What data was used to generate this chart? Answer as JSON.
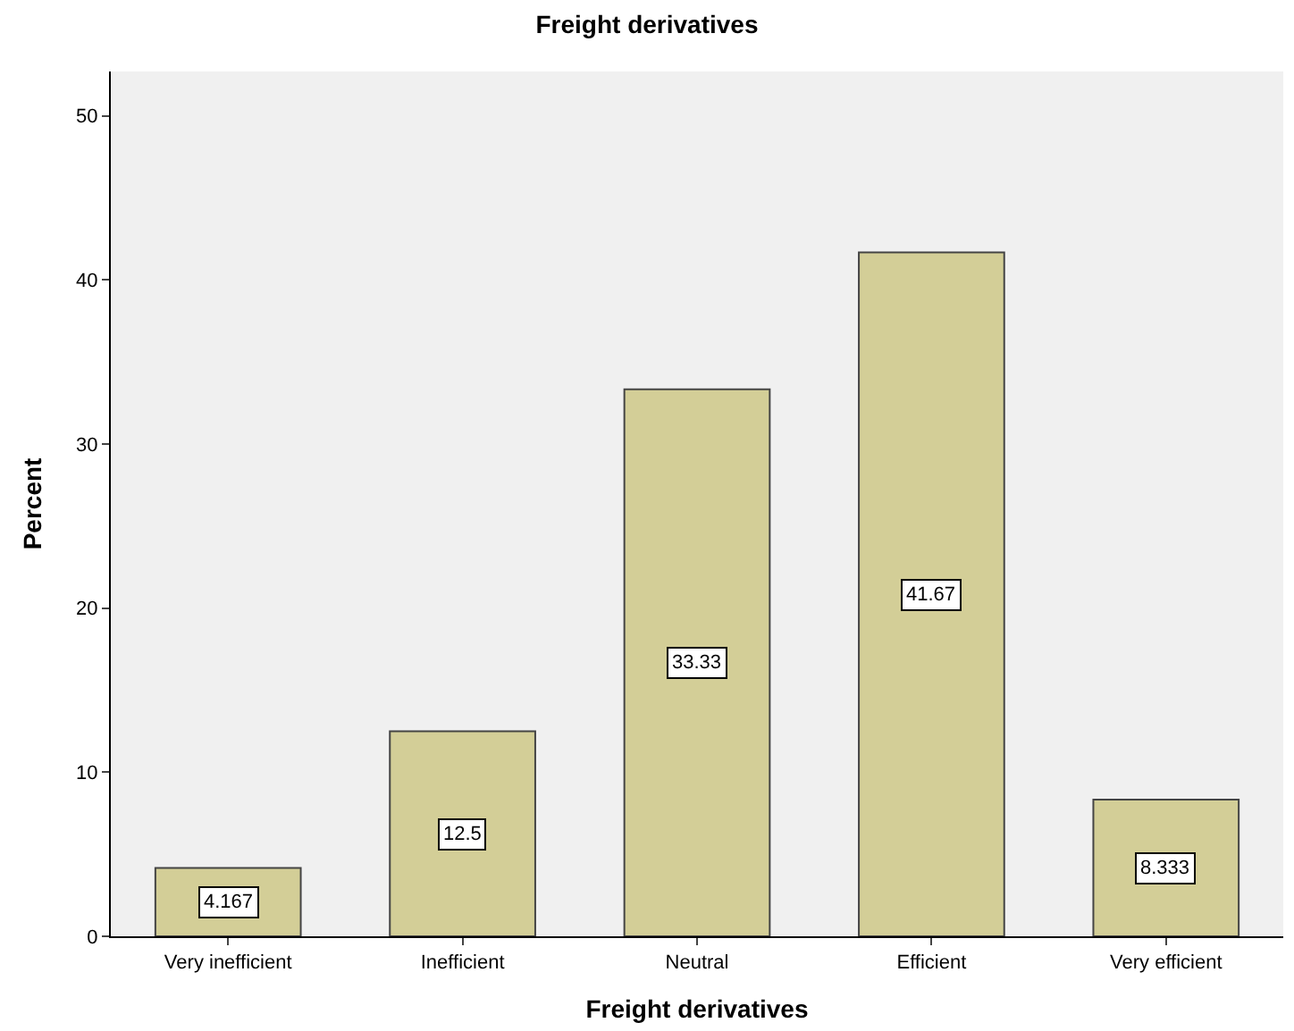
{
  "chart_data": {
    "type": "bar",
    "title": "Freight derivatives",
    "xlabel": "Freight derivatives",
    "ylabel": "Percent",
    "categories": [
      "Very inefficient",
      "Inefficient",
      "Neutral",
      "Efficient",
      "Very efficient"
    ],
    "values": [
      4.167,
      12.5,
      33.33,
      41.67,
      8.333
    ],
    "color": "#d3ce97",
    "ylim": [
      0,
      52.7
    ],
    "yticks": [
      0,
      10,
      20,
      30,
      40,
      50
    ],
    "grid": false,
    "data_labels": true
  }
}
